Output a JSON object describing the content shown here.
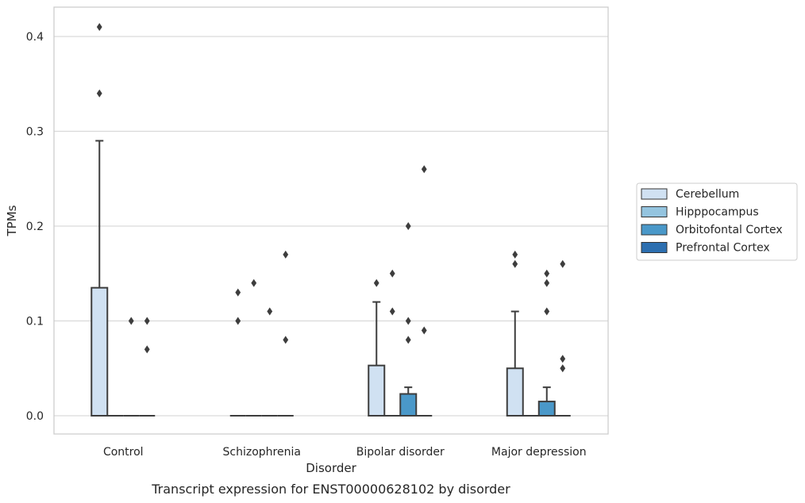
{
  "chart_data": {
    "type": "box",
    "title": "",
    "caption": "Transcript expression for ENST00000628102 by disorder",
    "xlabel": "Disorder",
    "ylabel": "TPMs",
    "ylim": [
      -0.02,
      0.43
    ],
    "yticks": [
      0.0,
      0.1,
      0.2,
      0.3,
      0.4
    ],
    "ytick_labels": [
      "0.0",
      "0.1",
      "0.2",
      "0.3",
      "0.4"
    ],
    "grid": "horizontal",
    "legend_placement": "center-right, outside plot",
    "categories": [
      "Control",
      "Schizophrenia",
      "Bipolar disorder",
      "Major depression"
    ],
    "series": [
      {
        "name": "Cerebellum",
        "color": "#d0e1f2",
        "boxes": [
          {
            "q1": 0.0,
            "median": 0.0,
            "q3": 0.135,
            "whisker_low": 0.0,
            "whisker_high": 0.29,
            "outliers": [
              0.34,
              0.41
            ]
          },
          {
            "q1": 0.0,
            "median": 0.0,
            "q3": 0.0,
            "whisker_low": 0.0,
            "whisker_high": 0.0,
            "outliers": [
              0.1,
              0.13
            ]
          },
          {
            "q1": 0.0,
            "median": 0.0,
            "q3": 0.053,
            "whisker_low": 0.0,
            "whisker_high": 0.12,
            "outliers": [
              0.14
            ]
          },
          {
            "q1": 0.0,
            "median": 0.0,
            "q3": 0.05,
            "whisker_low": 0.0,
            "whisker_high": 0.11,
            "outliers": [
              0.16,
              0.17
            ]
          }
        ]
      },
      {
        "name": "Hipppocampus",
        "color": "#94c4df",
        "boxes": [
          {
            "q1": 0.0,
            "median": 0.0,
            "q3": 0.0,
            "whisker_low": 0.0,
            "whisker_high": 0.0,
            "outliers": []
          },
          {
            "q1": 0.0,
            "median": 0.0,
            "q3": 0.0,
            "whisker_low": 0.0,
            "whisker_high": 0.0,
            "outliers": [
              0.14
            ]
          },
          {
            "q1": 0.0,
            "median": 0.0,
            "q3": 0.0,
            "whisker_low": 0.0,
            "whisker_high": 0.0,
            "outliers": [
              0.11,
              0.15
            ]
          },
          {
            "q1": 0.0,
            "median": 0.0,
            "q3": 0.0,
            "whisker_low": 0.0,
            "whisker_high": 0.0,
            "outliers": []
          }
        ]
      },
      {
        "name": "Orbitofontal Cortex",
        "color": "#4a98c9",
        "boxes": [
          {
            "q1": 0.0,
            "median": 0.0,
            "q3": 0.0,
            "whisker_low": 0.0,
            "whisker_high": 0.0,
            "outliers": [
              0.1
            ]
          },
          {
            "q1": 0.0,
            "median": 0.0,
            "q3": 0.0,
            "whisker_low": 0.0,
            "whisker_high": 0.0,
            "outliers": [
              0.11
            ]
          },
          {
            "q1": 0.0,
            "median": 0.0,
            "q3": 0.023,
            "whisker_low": 0.0,
            "whisker_high": 0.03,
            "outliers": [
              0.08,
              0.1,
              0.2
            ]
          },
          {
            "q1": 0.0,
            "median": 0.0,
            "q3": 0.015,
            "whisker_low": 0.0,
            "whisker_high": 0.03,
            "outliers": [
              0.11,
              0.14,
              0.15
            ]
          }
        ]
      },
      {
        "name": "Prefrontal Cortex",
        "color": "#2d6fb0",
        "boxes": [
          {
            "q1": 0.0,
            "median": 0.0,
            "q3": 0.0,
            "whisker_low": 0.0,
            "whisker_high": 0.0,
            "outliers": [
              0.07,
              0.1
            ]
          },
          {
            "q1": 0.0,
            "median": 0.0,
            "q3": 0.0,
            "whisker_low": 0.0,
            "whisker_high": 0.0,
            "outliers": [
              0.08,
              0.17
            ]
          },
          {
            "q1": 0.0,
            "median": 0.0,
            "q3": 0.0,
            "whisker_low": 0.0,
            "whisker_high": 0.0,
            "outliers": [
              0.09,
              0.26
            ]
          },
          {
            "q1": 0.0,
            "median": 0.0,
            "q3": 0.0,
            "whisker_low": 0.0,
            "whisker_high": 0.0,
            "outliers": [
              0.05,
              0.06,
              0.16
            ]
          }
        ]
      }
    ]
  }
}
